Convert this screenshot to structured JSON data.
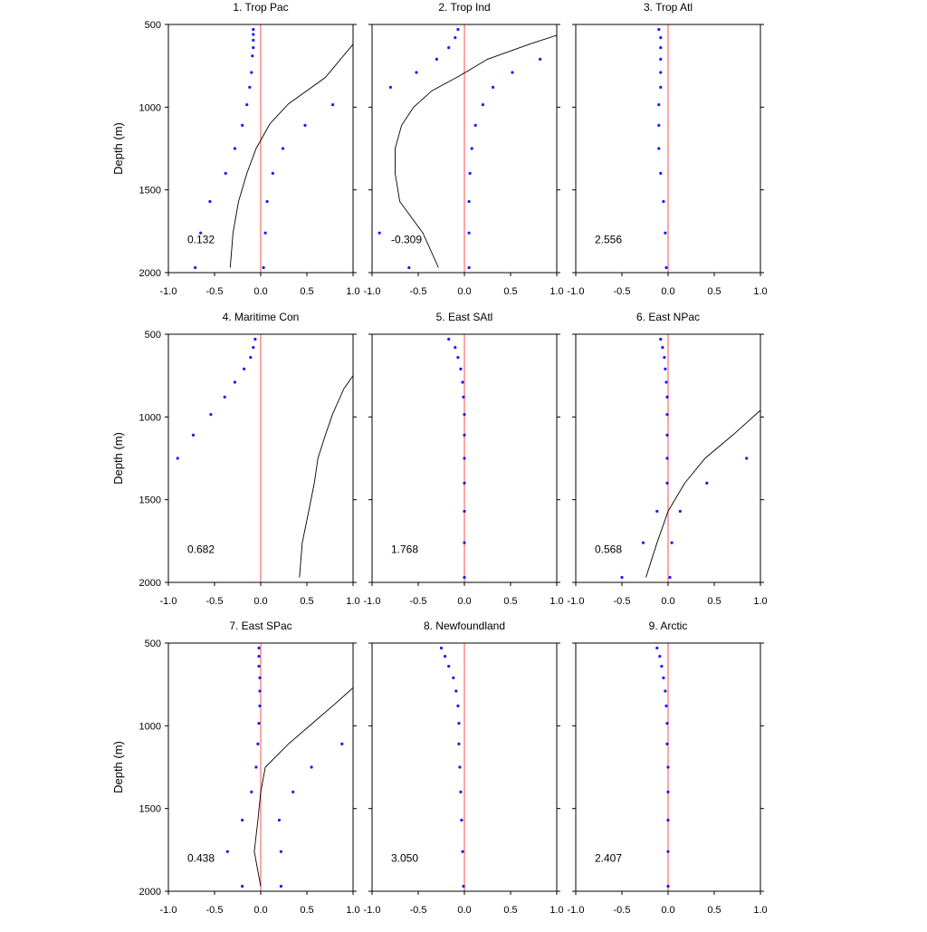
{
  "figure": {
    "ylabel": "Depth (m)",
    "y_ticks": [
      500,
      1000,
      1500,
      2000
    ],
    "x_ticks": [
      "-1.0",
      "-0.5",
      "0.0",
      "0.5",
      "1.0"
    ],
    "xlim": [
      -1.0,
      1.0
    ],
    "ylim": [
      500,
      2000
    ],
    "y_inverted": true,
    "colors": {
      "dots": "#1a1aff",
      "zero_line": "#ff8080",
      "curve": "#000000",
      "axes": "#000000"
    }
  },
  "chart_data": [
    {
      "type": "scatter",
      "title": "1. Trop Pac",
      "annotation": "0.132",
      "dots": [
        [
          -0.08,
          530
        ],
        [
          -0.08,
          560
        ],
        [
          -0.08,
          595
        ],
        [
          -0.08,
          640
        ],
        [
          -0.09,
          690
        ],
        [
          -0.1,
          790
        ],
        [
          -0.12,
          880
        ],
        [
          -0.15,
          985
        ],
        [
          -0.2,
          1110
        ],
        [
          -0.28,
          1250
        ],
        [
          -0.38,
          1400
        ],
        [
          -0.55,
          1570
        ],
        [
          -0.65,
          1760
        ],
        [
          -0.71,
          1970
        ],
        [
          0.78,
          985
        ],
        [
          0.48,
          1110
        ],
        [
          0.24,
          1250
        ],
        [
          0.13,
          1400
        ],
        [
          0.07,
          1570
        ],
        [
          0.05,
          1760
        ],
        [
          0.03,
          1970
        ]
      ],
      "curve": [
        [
          1.0,
          620
        ],
        [
          0.7,
          820
        ],
        [
          0.3,
          980
        ],
        [
          0.1,
          1100
        ],
        [
          -0.05,
          1250
        ],
        [
          -0.15,
          1400
        ],
        [
          -0.24,
          1570
        ],
        [
          -0.3,
          1760
        ],
        [
          -0.33,
          1970
        ]
      ]
    },
    {
      "type": "scatter",
      "title": "2. Trop Ind",
      "annotation": "-0.309",
      "dots": [
        [
          -0.07,
          530
        ],
        [
          -0.1,
          580
        ],
        [
          -0.17,
          640
        ],
        [
          -0.3,
          710
        ],
        [
          -0.52,
          790
        ],
        [
          -0.8,
          880
        ],
        [
          -0.92,
          1760
        ],
        [
          -0.6,
          1970
        ],
        [
          0.82,
          710
        ],
        [
          0.52,
          790
        ],
        [
          0.31,
          880
        ],
        [
          0.2,
          985
        ],
        [
          0.12,
          1110
        ],
        [
          0.08,
          1250
        ],
        [
          0.06,
          1400
        ],
        [
          0.05,
          1570
        ],
        [
          0.05,
          1760
        ],
        [
          0.05,
          1970
        ]
      ],
      "curve": [
        [
          1.0,
          565
        ],
        [
          0.7,
          620
        ],
        [
          0.25,
          710
        ],
        [
          -0.05,
          810
        ],
        [
          -0.35,
          900
        ],
        [
          -0.55,
          1000
        ],
        [
          -0.68,
          1110
        ],
        [
          -0.75,
          1250
        ],
        [
          -0.75,
          1400
        ],
        [
          -0.7,
          1570
        ],
        [
          -0.45,
          1760
        ],
        [
          -0.28,
          1970
        ]
      ]
    },
    {
      "type": "scatter",
      "title": "3. Trop Atl",
      "annotation": "2.556",
      "dots": [
        [
          -0.1,
          530
        ],
        [
          -0.08,
          580
        ],
        [
          -0.08,
          640
        ],
        [
          -0.08,
          710
        ],
        [
          -0.08,
          790
        ],
        [
          -0.08,
          880
        ],
        [
          -0.1,
          985
        ],
        [
          -0.1,
          1110
        ],
        [
          -0.1,
          1250
        ],
        [
          -0.08,
          1400
        ],
        [
          -0.05,
          1570
        ],
        [
          -0.03,
          1760
        ],
        [
          -0.02,
          1970
        ]
      ],
      "curve": []
    },
    {
      "type": "scatter",
      "title": "4. Maritime Con",
      "annotation": "0.682",
      "dots": [
        [
          -0.06,
          530
        ],
        [
          -0.08,
          580
        ],
        [
          -0.11,
          640
        ],
        [
          -0.18,
          710
        ],
        [
          -0.28,
          790
        ],
        [
          -0.39,
          880
        ],
        [
          -0.54,
          985
        ],
        [
          -0.73,
          1110
        ],
        [
          -0.9,
          1250
        ]
      ],
      "curve": [
        [
          1.0,
          750
        ],
        [
          0.9,
          830
        ],
        [
          0.78,
          980
        ],
        [
          0.7,
          1110
        ],
        [
          0.62,
          1250
        ],
        [
          0.58,
          1400
        ],
        [
          0.52,
          1570
        ],
        [
          0.45,
          1760
        ],
        [
          0.42,
          1970
        ]
      ]
    },
    {
      "type": "scatter",
      "title": "5. East SAtl",
      "annotation": "1.768",
      "dots": [
        [
          -0.17,
          530
        ],
        [
          -0.1,
          580
        ],
        [
          -0.07,
          640
        ],
        [
          -0.04,
          710
        ],
        [
          -0.02,
          790
        ],
        [
          -0.01,
          880
        ],
        [
          0.0,
          985
        ],
        [
          0.0,
          1110
        ],
        [
          0.0,
          1250
        ],
        [
          0.0,
          1400
        ],
        [
          0.0,
          1570
        ],
        [
          0.0,
          1760
        ],
        [
          0.0,
          1970
        ]
      ],
      "curve": []
    },
    {
      "type": "scatter",
      "title": "6. East NPac",
      "annotation": "0.568",
      "dots": [
        [
          -0.08,
          530
        ],
        [
          -0.06,
          580
        ],
        [
          -0.04,
          640
        ],
        [
          -0.03,
          710
        ],
        [
          -0.02,
          790
        ],
        [
          -0.01,
          880
        ],
        [
          -0.01,
          985
        ],
        [
          -0.01,
          1110
        ],
        [
          -0.01,
          1250
        ],
        [
          -0.01,
          1400
        ],
        [
          -0.12,
          1570
        ],
        [
          -0.27,
          1760
        ],
        [
          -0.5,
          1970
        ],
        [
          0.85,
          1250
        ],
        [
          0.42,
          1400
        ],
        [
          0.13,
          1570
        ],
        [
          0.04,
          1760
        ],
        [
          0.02,
          1970
        ]
      ],
      "curve": [
        [
          1.0,
          960
        ],
        [
          0.7,
          1110
        ],
        [
          0.4,
          1250
        ],
        [
          0.18,
          1400
        ],
        [
          0.0,
          1570
        ],
        [
          -0.12,
          1760
        ],
        [
          -0.24,
          1970
        ]
      ]
    },
    {
      "type": "scatter",
      "title": "7. East SPac",
      "annotation": "0.438",
      "dots": [
        [
          -0.02,
          530
        ],
        [
          -0.02,
          580
        ],
        [
          -0.02,
          640
        ],
        [
          -0.01,
          710
        ],
        [
          -0.01,
          790
        ],
        [
          -0.01,
          880
        ],
        [
          -0.02,
          985
        ],
        [
          -0.03,
          1110
        ],
        [
          -0.05,
          1250
        ],
        [
          -0.1,
          1400
        ],
        [
          -0.2,
          1570
        ],
        [
          -0.36,
          1760
        ],
        [
          -0.2,
          1970
        ],
        [
          0.88,
          1110
        ],
        [
          0.55,
          1250
        ],
        [
          0.35,
          1400
        ],
        [
          0.2,
          1570
        ],
        [
          0.22,
          1760
        ],
        [
          0.22,
          1970
        ]
      ],
      "curve": [
        [
          1.0,
          770
        ],
        [
          0.8,
          870
        ],
        [
          0.55,
          990
        ],
        [
          0.3,
          1110
        ],
        [
          0.05,
          1250
        ],
        [
          0.0,
          1400
        ],
        [
          -0.03,
          1570
        ],
        [
          -0.07,
          1760
        ],
        [
          0.0,
          1970
        ]
      ]
    },
    {
      "type": "scatter",
      "title": "8. Newfoundland",
      "annotation": "3.050",
      "dots": [
        [
          -0.25,
          530
        ],
        [
          -0.21,
          580
        ],
        [
          -0.17,
          640
        ],
        [
          -0.12,
          710
        ],
        [
          -0.09,
          790
        ],
        [
          -0.07,
          880
        ],
        [
          -0.06,
          985
        ],
        [
          -0.06,
          1110
        ],
        [
          -0.05,
          1250
        ],
        [
          -0.04,
          1400
        ],
        [
          -0.03,
          1570
        ],
        [
          -0.02,
          1760
        ],
        [
          -0.01,
          1970
        ]
      ],
      "curve": []
    },
    {
      "type": "scatter",
      "title": "9. Arctic",
      "annotation": "2.407",
      "dots": [
        [
          -0.12,
          530
        ],
        [
          -0.09,
          580
        ],
        [
          -0.07,
          640
        ],
        [
          -0.05,
          710
        ],
        [
          -0.03,
          790
        ],
        [
          -0.02,
          880
        ],
        [
          -0.01,
          985
        ],
        [
          -0.01,
          1110
        ],
        [
          0.0,
          1250
        ],
        [
          0.0,
          1400
        ],
        [
          0.0,
          1570
        ],
        [
          0.0,
          1760
        ],
        [
          0.0,
          1970
        ]
      ],
      "curve": []
    }
  ]
}
